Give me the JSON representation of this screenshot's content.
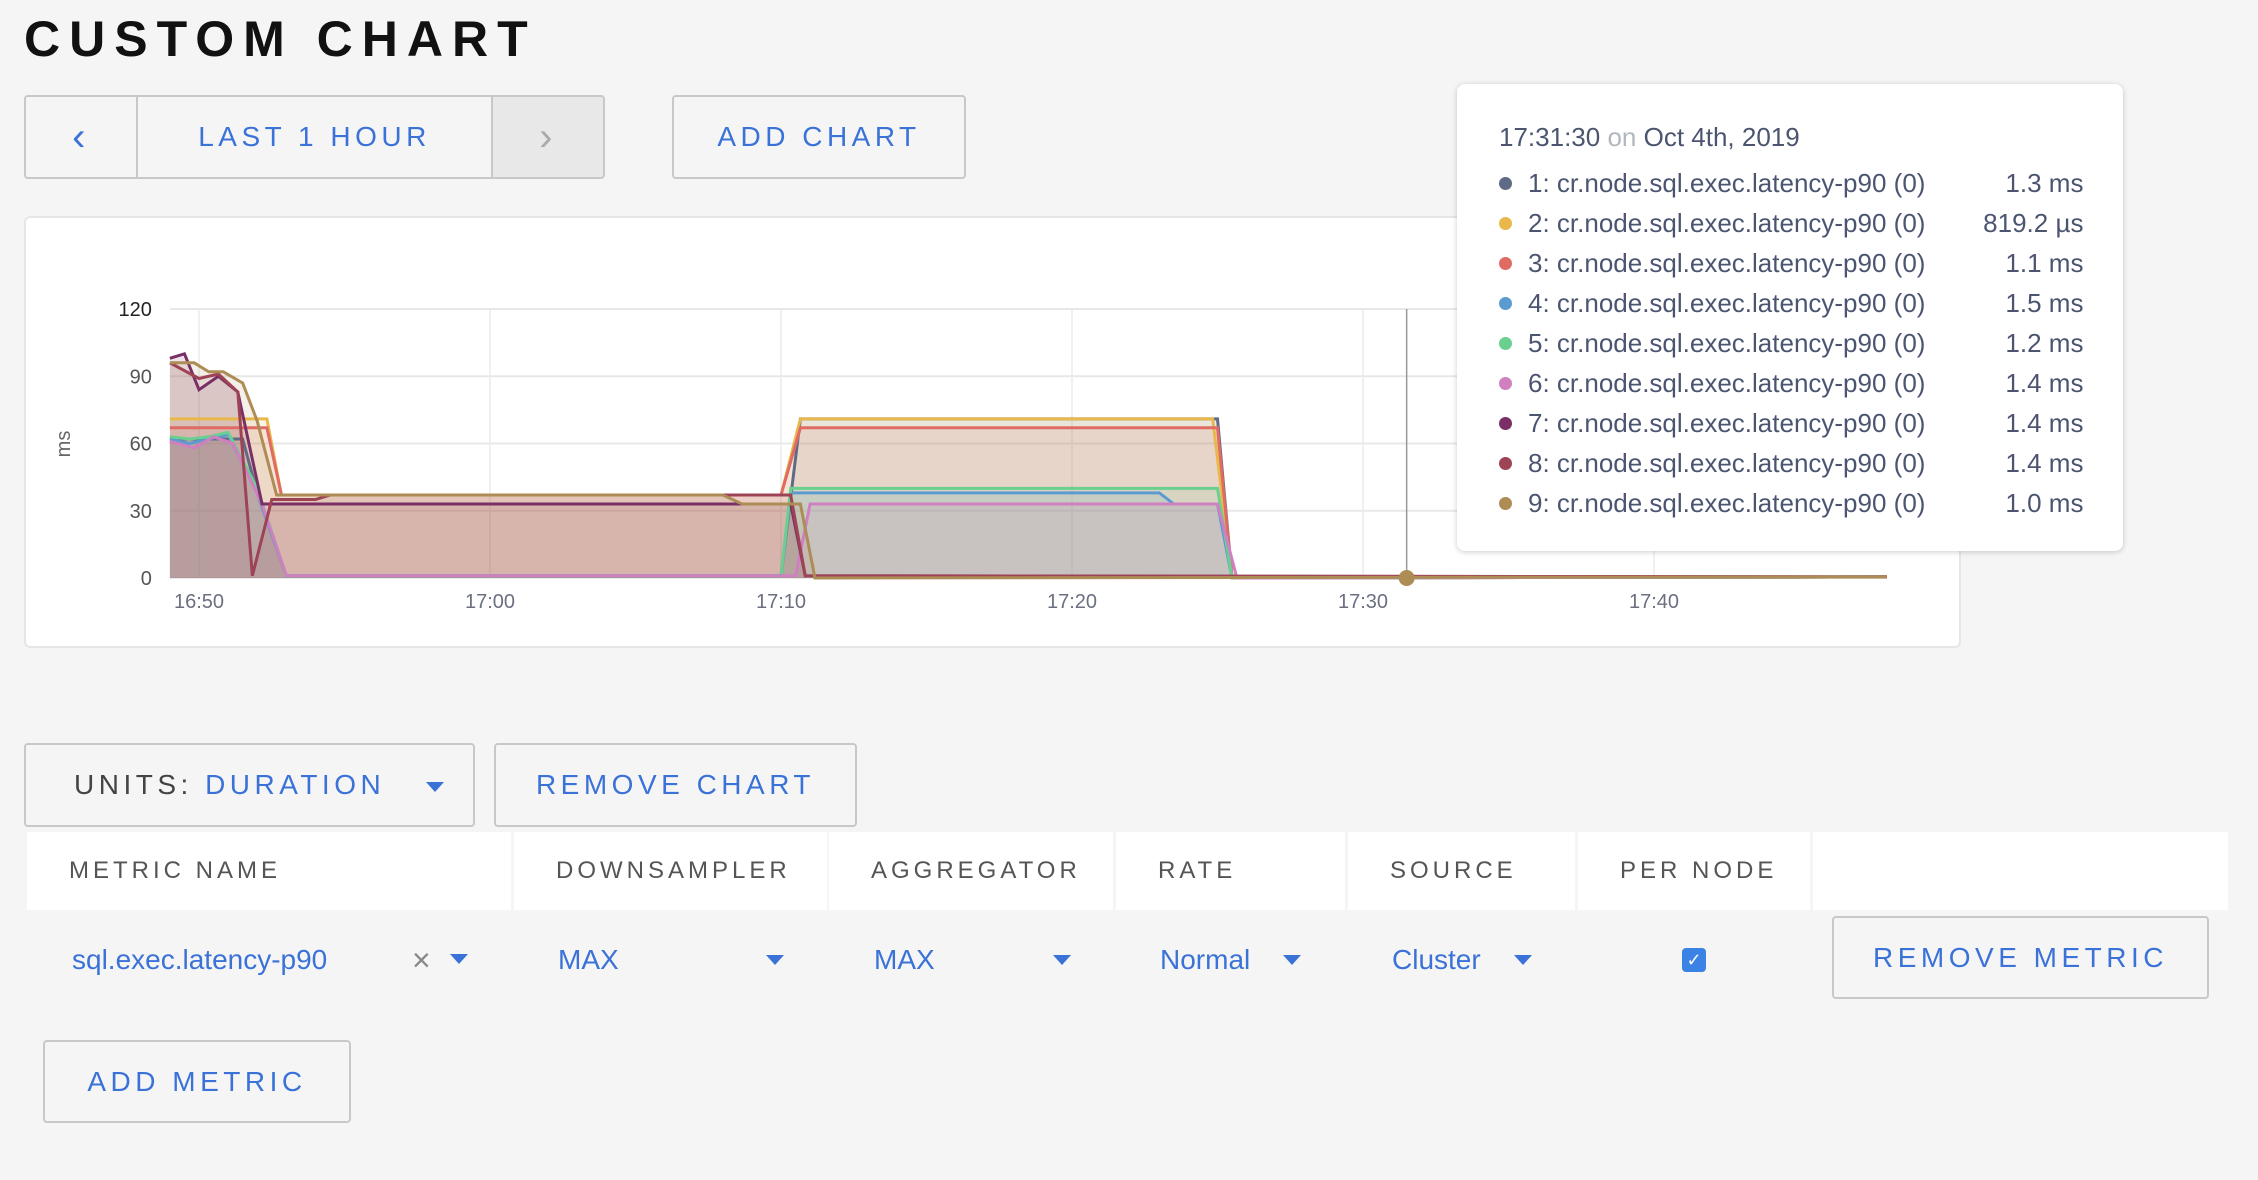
{
  "page_title": "CUSTOM CHART",
  "time_nav": {
    "prev_icon": "chevron-left-icon",
    "prev": "‹",
    "label": "LAST 1 HOUR",
    "next_icon": "chevron-right-icon",
    "next": "›"
  },
  "add_chart": "ADD CHART",
  "tooltip": {
    "time": "17:31:30",
    "on": "on",
    "date": "Oct 4th, 2019",
    "rows": [
      {
        "name": "1: cr.node.sql.exec.latency-p90 (0)",
        "value": "1.3 ms",
        "color": "#5f6a86"
      },
      {
        "name": "2: cr.node.sql.exec.latency-p90 (0)",
        "value": "819.2 µs",
        "color": "#e8b84a"
      },
      {
        "name": "3: cr.node.sql.exec.latency-p90 (0)",
        "value": "1.1 ms",
        "color": "#e06b63"
      },
      {
        "name": "4: cr.node.sql.exec.latency-p90 (0)",
        "value": "1.5 ms",
        "color": "#5b9bd0"
      },
      {
        "name": "5: cr.node.sql.exec.latency-p90 (0)",
        "value": "1.2 ms",
        "color": "#6bd08f"
      },
      {
        "name": "6: cr.node.sql.exec.latency-p90 (0)",
        "value": "1.4 ms",
        "color": "#d07fc0"
      },
      {
        "name": "7: cr.node.sql.exec.latency-p90 (0)",
        "value": "1.4 ms",
        "color": "#7a3066"
      },
      {
        "name": "8: cr.node.sql.exec.latency-p90 (0)",
        "value": "1.4 ms",
        "color": "#9e4355"
      },
      {
        "name": "9: cr.node.sql.exec.latency-p90 (0)",
        "value": "1.0 ms",
        "color": "#ad8d55"
      }
    ]
  },
  "chart_data": {
    "type": "area",
    "ylabel": "ms",
    "ylim": [
      0,
      120
    ],
    "yticks": [
      0,
      30,
      60,
      90,
      120
    ],
    "xticks": [
      "16:50",
      "17:00",
      "17:10",
      "17:20",
      "17:30",
      "17:40"
    ],
    "xlim": [
      "16:49:00",
      "17:48:00"
    ],
    "grid": true,
    "hover_time": "17:31:30",
    "hover_value": 0,
    "series": [
      {
        "color": "#5f6a86",
        "points": [
          [
            "16:49:00",
            62
          ],
          [
            "16:51:30",
            62
          ],
          [
            "16:52:00",
            38
          ],
          [
            "16:53:00",
            1
          ],
          [
            "17:10:00",
            1
          ],
          [
            "17:10:40",
            71
          ],
          [
            "17:25:00",
            71
          ],
          [
            "17:25:30",
            0
          ],
          [
            "17:48:00",
            0.5
          ]
        ]
      },
      {
        "color": "#e8b84a",
        "points": [
          [
            "16:49:00",
            71
          ],
          [
            "16:52:20",
            71
          ],
          [
            "16:52:50",
            37
          ],
          [
            "17:10:00",
            37
          ],
          [
            "17:10:40",
            71
          ],
          [
            "17:24:50",
            71
          ],
          [
            "17:25:30",
            0
          ],
          [
            "17:48:00",
            0.5
          ]
        ]
      },
      {
        "color": "#e06b63",
        "points": [
          [
            "16:49:00",
            67
          ],
          [
            "16:52:20",
            67
          ],
          [
            "16:52:50",
            37
          ],
          [
            "17:10:00",
            37
          ],
          [
            "17:10:40",
            67
          ],
          [
            "17:25:00",
            67
          ],
          [
            "17:25:30",
            0
          ],
          [
            "17:48:00",
            0.5
          ]
        ]
      },
      {
        "color": "#5b9bd0",
        "points": [
          [
            "16:49:00",
            62
          ],
          [
            "16:49:40",
            60
          ],
          [
            "16:50:20",
            62
          ],
          [
            "16:51:00",
            64
          ],
          [
            "16:52:00",
            38
          ],
          [
            "16:53:00",
            1
          ],
          [
            "17:10:00",
            1
          ],
          [
            "17:10:20",
            38
          ],
          [
            "17:23:00",
            38
          ],
          [
            "17:23:30",
            33
          ],
          [
            "17:25:00",
            33
          ],
          [
            "17:25:30",
            0
          ],
          [
            "17:48:00",
            0.5
          ]
        ]
      },
      {
        "color": "#6bd08f",
        "points": [
          [
            "16:49:00",
            63
          ],
          [
            "16:49:40",
            62
          ],
          [
            "16:50:20",
            63
          ],
          [
            "16:51:00",
            65
          ],
          [
            "16:52:00",
            40
          ],
          [
            "16:53:00",
            1
          ],
          [
            "17:10:00",
            1
          ],
          [
            "17:10:20",
            40
          ],
          [
            "17:25:00",
            40
          ],
          [
            "17:25:30",
            0
          ],
          [
            "17:48:00",
            0.5
          ]
        ]
      },
      {
        "color": "#d07fc0",
        "points": [
          [
            "16:49:00",
            61
          ],
          [
            "16:49:50",
            58
          ],
          [
            "16:50:30",
            63
          ],
          [
            "16:51:10",
            60
          ],
          [
            "16:52:10",
            33
          ],
          [
            "16:53:00",
            1
          ],
          [
            "17:10:30",
            1
          ],
          [
            "17:11:00",
            33
          ],
          [
            "17:25:00",
            33
          ],
          [
            "17:25:40",
            0
          ],
          [
            "17:48:00",
            0.5
          ]
        ]
      },
      {
        "color": "#7a3066",
        "points": [
          [
            "16:49:00",
            98
          ],
          [
            "16:49:30",
            100
          ],
          [
            "16:50:00",
            84
          ],
          [
            "16:50:40",
            90
          ],
          [
            "16:51:20",
            83
          ],
          [
            "16:52:10",
            33
          ],
          [
            "17:10:20",
            33
          ],
          [
            "17:10:50",
            1
          ],
          [
            "17:48:00",
            0.5
          ]
        ]
      },
      {
        "color": "#9e4355",
        "points": [
          [
            "16:49:00",
            96
          ],
          [
            "16:50:00",
            89
          ],
          [
            "16:50:40",
            91
          ],
          [
            "16:51:20",
            83
          ],
          [
            "16:51:50",
            1
          ],
          [
            "16:52:30",
            35
          ],
          [
            "16:54:00",
            35
          ],
          [
            "16:54:30",
            37
          ],
          [
            "17:10:20",
            37
          ],
          [
            "17:10:50",
            1
          ],
          [
            "17:48:00",
            0.5
          ]
        ]
      },
      {
        "color": "#ad8d55",
        "points": [
          [
            "16:49:00",
            96
          ],
          [
            "16:49:50",
            96
          ],
          [
            "16:50:20",
            92
          ],
          [
            "16:50:50",
            92
          ],
          [
            "16:51:30",
            87
          ],
          [
            "16:52:00",
            70
          ],
          [
            "16:52:40",
            37
          ],
          [
            "17:08:00",
            37
          ],
          [
            "17:08:40",
            33
          ],
          [
            "17:10:40",
            33
          ],
          [
            "17:11:10",
            0
          ],
          [
            "17:48:00",
            0.5
          ]
        ]
      }
    ]
  },
  "units": {
    "label": "UNITS:",
    "value": "DURATION"
  },
  "remove_chart": "REMOVE CHART",
  "table": {
    "headers": [
      "METRIC NAME",
      "DOWNSAMPLER",
      "AGGREGATOR",
      "RATE",
      "SOURCE",
      "PER NODE"
    ],
    "row": {
      "metric": "sql.exec.latency-p90",
      "clear": "×",
      "downsampler": "MAX",
      "aggregator": "MAX",
      "rate": "Normal",
      "source": "Cluster",
      "per_node": true,
      "check": "✓"
    }
  },
  "remove_metric": "REMOVE METRIC",
  "add_metric": "ADD METRIC"
}
